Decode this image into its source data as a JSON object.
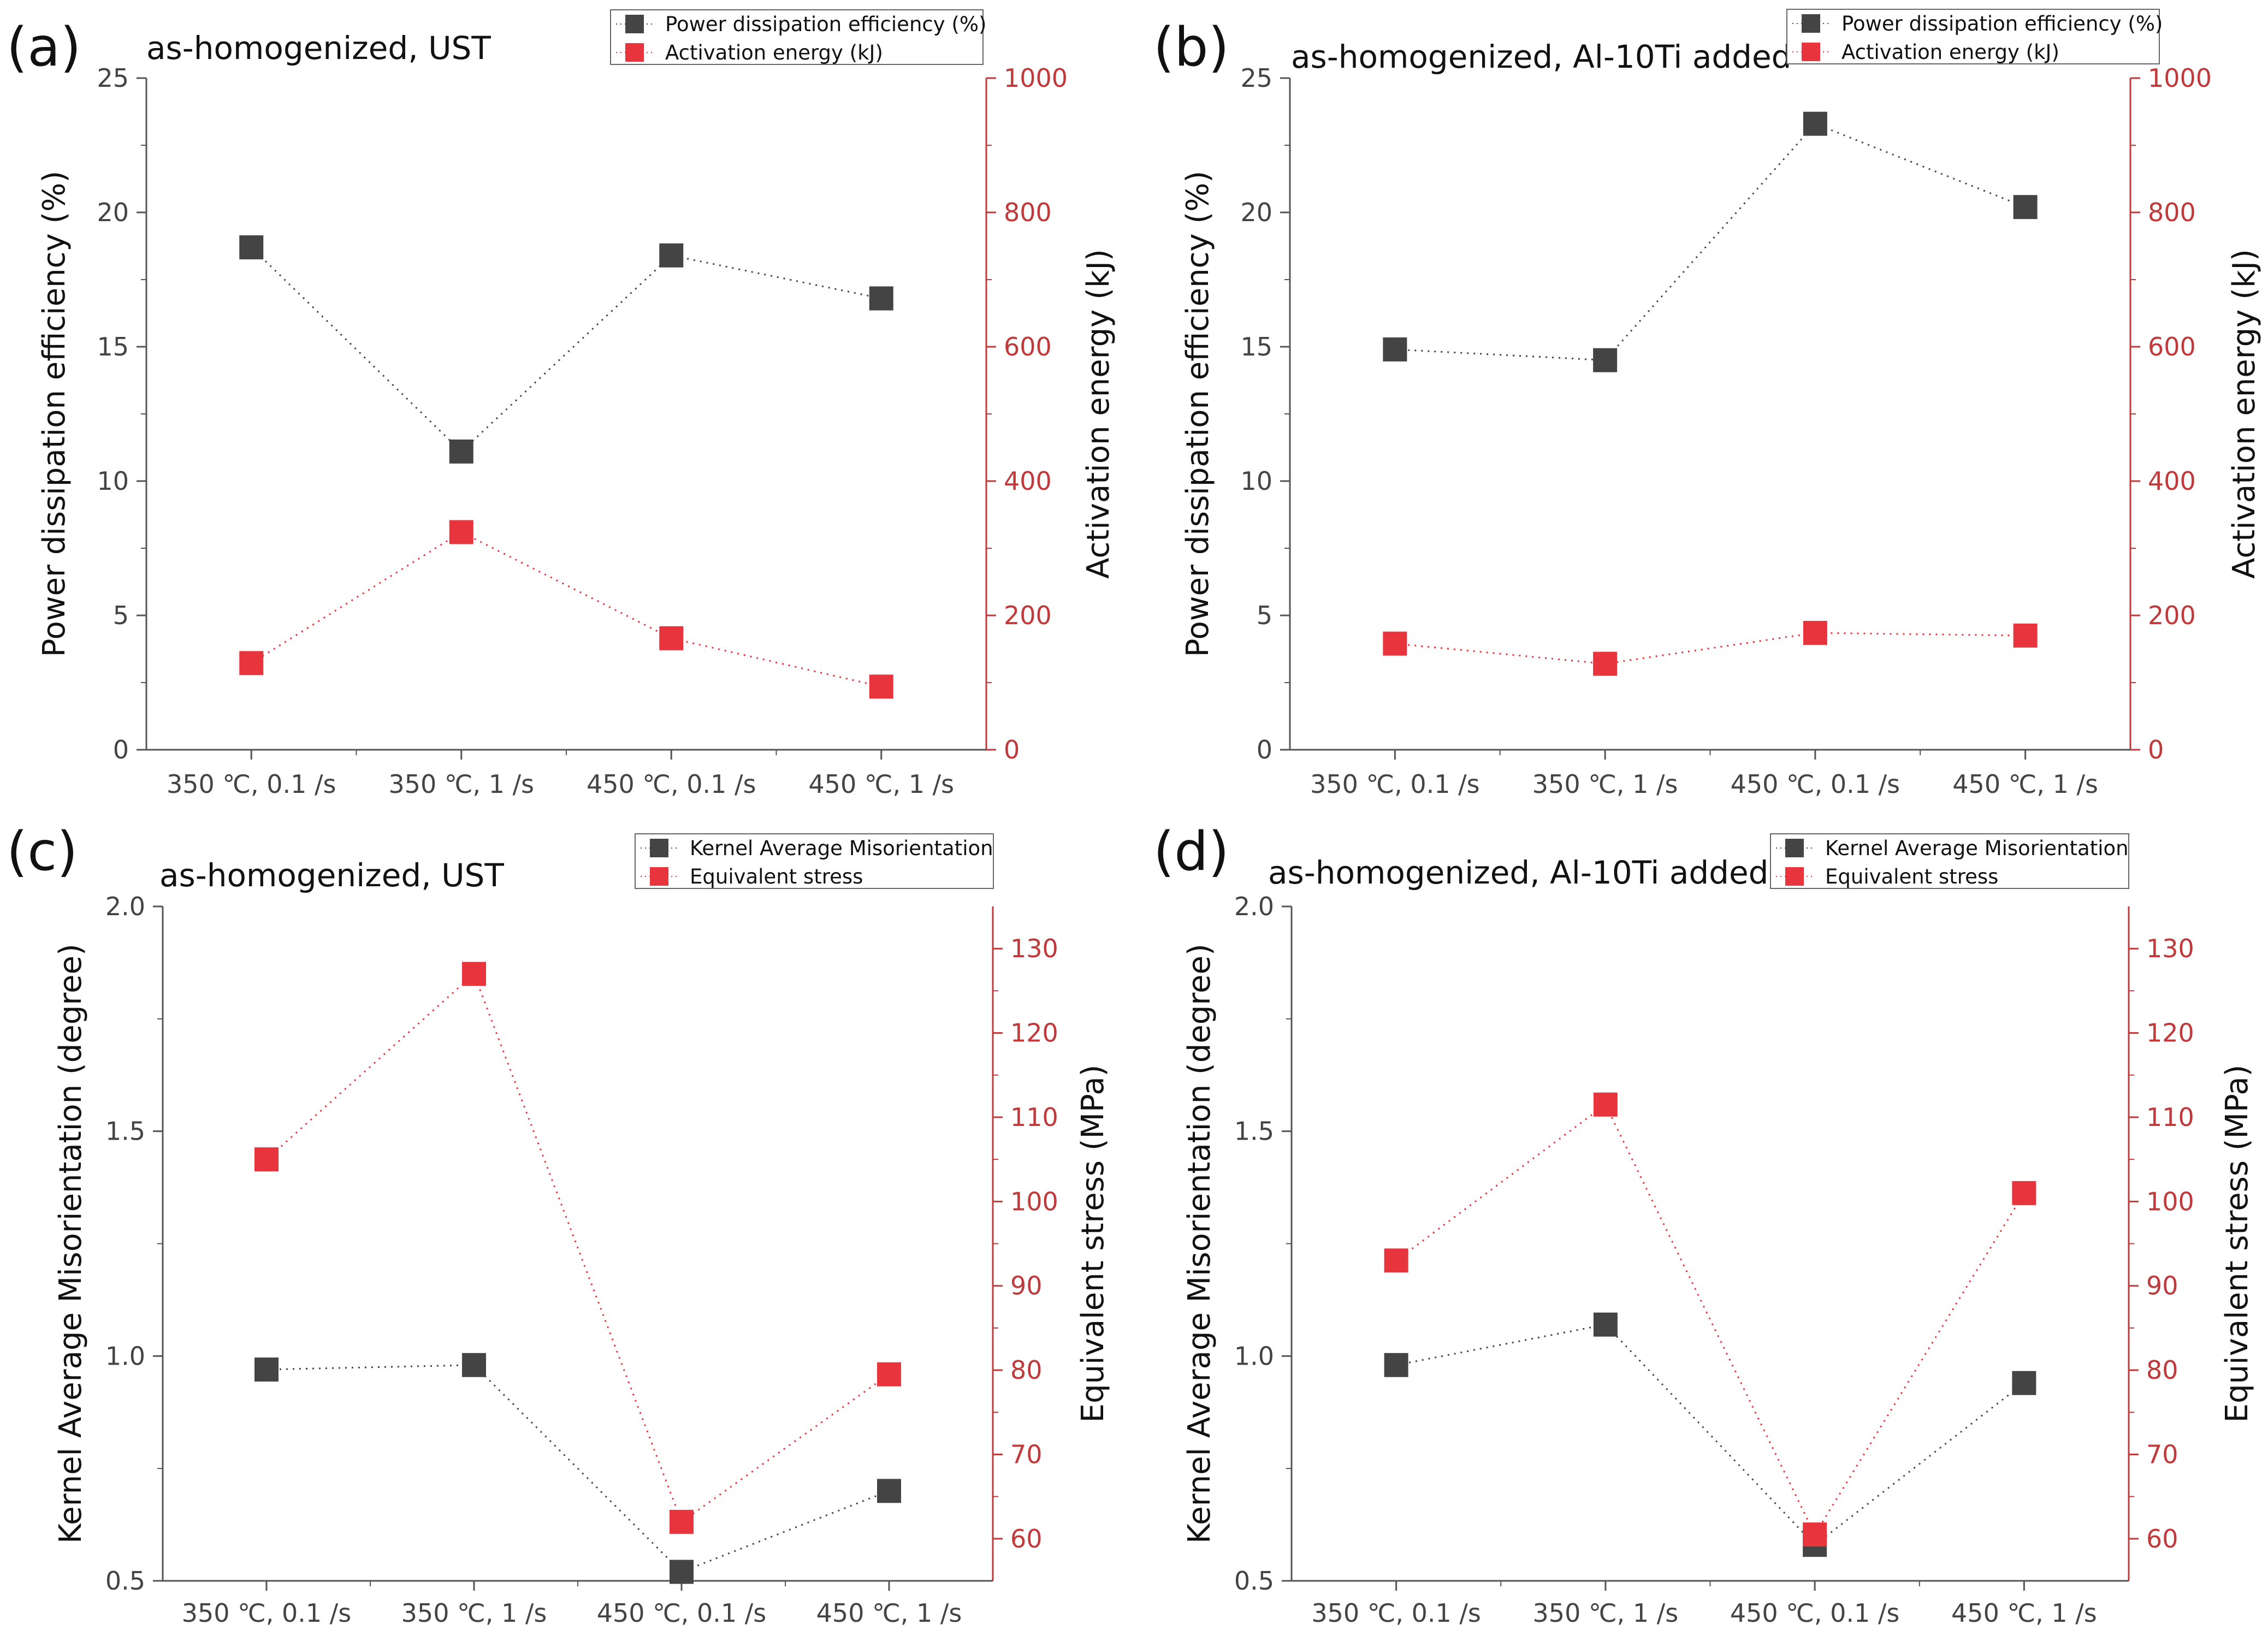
{
  "chart_data": [
    {
      "type": "line",
      "panel_label": "(a)",
      "title": "as-homogenized, UST",
      "categories": [
        "350 ℃, 0.1 /s",
        "350 ℃, 1 /s",
        "450 ℃, 0.1 /s",
        "450 ℃, 1 /s"
      ],
      "left_axis": {
        "label": "Power dissipation efficiency (%)",
        "range": [
          0,
          25
        ],
        "ticks": [
          0,
          5,
          10,
          15,
          20,
          25
        ],
        "tick_labels": [
          "0",
          "5",
          "10",
          "15",
          "20",
          "25"
        ]
      },
      "right_axis": {
        "label": "Activation energy (kJ)",
        "range": [
          0,
          1000
        ],
        "ticks": [
          0,
          200,
          400,
          600,
          800,
          1000
        ],
        "tick_labels": [
          "0",
          "200",
          "400",
          "600",
          "800",
          "1000"
        ]
      },
      "series": [
        {
          "name": "Power dissipation efficiency (%)",
          "axis": "left",
          "color": "#444444",
          "values": [
            18.7,
            11.1,
            18.4,
            16.8
          ]
        },
        {
          "name": "Activation energy (kJ)",
          "axis": "right",
          "color": "#e8343c",
          "values": [
            129,
            324,
            166,
            94
          ]
        }
      ]
    },
    {
      "type": "line",
      "panel_label": "(b)",
      "title": "as-homogenized, Al-10Ti added",
      "categories": [
        "350 ℃, 0.1 /s",
        "350 ℃, 1 /s",
        "450 ℃, 0.1 /s",
        "450 ℃, 1 /s"
      ],
      "left_axis": {
        "label": "Power dissipation efficiency (%)",
        "range": [
          0,
          25
        ],
        "ticks": [
          0,
          5,
          10,
          15,
          20,
          25
        ],
        "tick_labels": [
          "0",
          "5",
          "10",
          "15",
          "20",
          "25"
        ]
      },
      "right_axis": {
        "label": "Activation energy (kJ)",
        "range": [
          0,
          1000
        ],
        "ticks": [
          0,
          200,
          400,
          600,
          800,
          1000
        ],
        "tick_labels": [
          "0",
          "200",
          "400",
          "600",
          "800",
          "1000"
        ]
      },
      "series": [
        {
          "name": "Power dissipation efficiency (%)",
          "axis": "left",
          "color": "#444444",
          "values": [
            14.9,
            14.5,
            23.3,
            20.2
          ]
        },
        {
          "name": "Activation energy (kJ)",
          "axis": "right",
          "color": "#e8343c",
          "values": [
            158,
            128,
            174,
            170
          ]
        }
      ]
    },
    {
      "type": "line",
      "panel_label": "(c)",
      "title": "as-homogenized, UST",
      "categories": [
        "350 ℃, 0.1 /s",
        "350 ℃, 1 /s",
        "450 ℃, 0.1 /s",
        "450 ℃, 1 /s"
      ],
      "left_axis": {
        "label": "Kernel Average Misorientation (degree)",
        "range": [
          0.5,
          2.0
        ],
        "ticks": [
          0.5,
          1.0,
          1.5,
          2.0
        ],
        "tick_labels": [
          "0.5",
          "1.0",
          "1.5",
          "2.0"
        ]
      },
      "right_axis": {
        "label": "Equivalent stress (MPa)",
        "range": [
          55,
          135
        ],
        "ticks": [
          60,
          70,
          80,
          90,
          100,
          110,
          120,
          130
        ],
        "tick_labels": [
          "60",
          "70",
          "80",
          "90",
          "100",
          "110",
          "120",
          "130"
        ]
      },
      "series": [
        {
          "name": "Kernel Average Misorientation",
          "axis": "left",
          "color": "#444444",
          "values": [
            0.97,
            0.98,
            0.52,
            0.7
          ]
        },
        {
          "name": "Equivalent stress",
          "axis": "right",
          "color": "#e8343c",
          "values": [
            105,
            127,
            62,
            79.5
          ]
        }
      ]
    },
    {
      "type": "line",
      "panel_label": "(d)",
      "title": "as-homogenized, Al-10Ti added",
      "categories": [
        "350 ℃, 0.1 /s",
        "350 ℃, 1 /s",
        "450 ℃, 0.1 /s",
        "450 ℃, 1 /s"
      ],
      "left_axis": {
        "label": "Kernel Average Misorientation (degree)",
        "range": [
          0.5,
          2.0
        ],
        "ticks": [
          0.5,
          1.0,
          1.5,
          2.0
        ],
        "tick_labels": [
          "0.5",
          "1.0",
          "1.5",
          "2.0"
        ]
      },
      "right_axis": {
        "label": "Equivalent stress (MPa)",
        "range": [
          55,
          135
        ],
        "ticks": [
          60,
          70,
          80,
          90,
          100,
          110,
          120,
          130
        ],
        "tick_labels": [
          "60",
          "70",
          "80",
          "90",
          "100",
          "110",
          "120",
          "130"
        ]
      },
      "series": [
        {
          "name": "Kernel Average Misorientation",
          "axis": "left",
          "color": "#444444",
          "values": [
            0.98,
            1.07,
            0.58,
            0.94
          ]
        },
        {
          "name": "Equivalent stress",
          "axis": "right",
          "color": "#e8343c",
          "values": [
            93,
            111.5,
            60.5,
            101
          ]
        }
      ]
    }
  ],
  "colors": {
    "left_axis": "#555555",
    "right_axis": "#c0393b",
    "right_tick_text": "#c0393b"
  }
}
